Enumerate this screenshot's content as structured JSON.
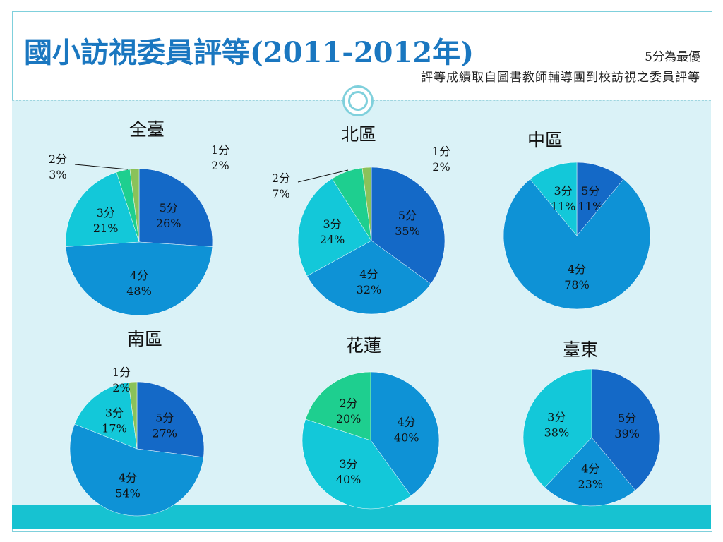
{
  "title": "國小訪視委員評等(2011-2012年)",
  "note_best": "5分為最優",
  "note_source": "評等成績取自圖書教師輔導團到校訪視之委員評等",
  "colors": {
    "score5": "#1469c7",
    "score4": "#0e92d6",
    "score3": "#13c8d9",
    "score2": "#1ecf8f",
    "score1": "#8ac25a"
  },
  "chart_data": [
    {
      "type": "pie",
      "title": "全臺",
      "slices": [
        {
          "label": "5分",
          "value": 26
        },
        {
          "label": "4分",
          "value": 48
        },
        {
          "label": "3分",
          "value": 21
        },
        {
          "label": "2分",
          "value": 3
        },
        {
          "label": "1分",
          "value": 2
        }
      ]
    },
    {
      "type": "pie",
      "title": "北區",
      "slices": [
        {
          "label": "5分",
          "value": 35
        },
        {
          "label": "4分",
          "value": 32
        },
        {
          "label": "3分",
          "value": 24
        },
        {
          "label": "2分",
          "value": 7
        },
        {
          "label": "1分",
          "value": 2
        }
      ]
    },
    {
      "type": "pie",
      "title": "中區",
      "slices": [
        {
          "label": "5分",
          "value": 11
        },
        {
          "label": "4分",
          "value": 78
        },
        {
          "label": "3分",
          "value": 11
        }
      ]
    },
    {
      "type": "pie",
      "title": "南區",
      "slices": [
        {
          "label": "5分",
          "value": 27
        },
        {
          "label": "4分",
          "value": 54
        },
        {
          "label": "3分",
          "value": 17
        },
        {
          "label": "1分",
          "value": 2
        }
      ]
    },
    {
      "type": "pie",
      "title": "花蓮",
      "slices": [
        {
          "label": "4分",
          "value": 40
        },
        {
          "label": "3分",
          "value": 40
        },
        {
          "label": "2分",
          "value": 20
        }
      ]
    },
    {
      "type": "pie",
      "title": "臺東",
      "slices": [
        {
          "label": "5分",
          "value": 39
        },
        {
          "label": "4分",
          "value": 23
        },
        {
          "label": "3分",
          "value": 38
        }
      ]
    }
  ]
}
